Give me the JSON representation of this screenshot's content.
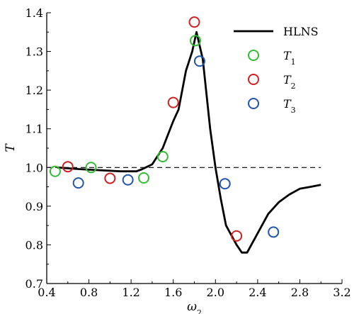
{
  "chart_data": {
    "type": "line",
    "xlabel": "ω",
    "xlabel_sub": "2",
    "ylabel": "T",
    "xlim": [
      0.4,
      3.2
    ],
    "ylim": [
      0.7,
      1.4
    ],
    "xticks": [
      "0.4",
      "0.8",
      "1.2",
      "1.6",
      "2.0",
      "2.4",
      "2.8",
      "3.2"
    ],
    "yticks": [
      "0.7",
      "0.8",
      "0.9",
      "1.0",
      "1.1",
      "1.2",
      "1.3",
      "1.4"
    ],
    "reference_line": {
      "y": 1.0,
      "style": "dashed"
    },
    "legend_position": "top-right",
    "series": [
      {
        "name": "HLNS",
        "kind": "line",
        "color": "#000000",
        "x": [
          0.5,
          0.7,
          0.9,
          1.1,
          1.25,
          1.3,
          1.4,
          1.5,
          1.6,
          1.65,
          1.72,
          1.78,
          1.82,
          1.88,
          1.95,
          2.0,
          2.05,
          2.1,
          2.2,
          2.25,
          2.3,
          2.4,
          2.5,
          2.6,
          2.7,
          2.8,
          2.9,
          3.0
        ],
        "y": [
          1.0,
          0.996,
          0.993,
          0.99,
          0.99,
          0.995,
          1.008,
          1.05,
          1.12,
          1.15,
          1.25,
          1.3,
          1.35,
          1.28,
          1.1,
          1.0,
          0.92,
          0.85,
          0.8,
          0.78,
          0.78,
          0.83,
          0.88,
          0.91,
          0.93,
          0.945,
          0.95,
          0.955
        ]
      },
      {
        "name": "T",
        "name_sub": "1",
        "kind": "markers",
        "color": "#33bb33",
        "x": [
          0.48,
          0.82,
          1.32,
          1.5,
          1.81
        ],
        "y": [
          0.99,
          1.0,
          0.973,
          1.028,
          1.328
        ]
      },
      {
        "name": "T",
        "name_sub": "2",
        "kind": "markers",
        "color": "#cc2222",
        "x": [
          0.6,
          1.0,
          1.6,
          1.8,
          2.2
        ],
        "y": [
          1.002,
          0.972,
          1.168,
          1.376,
          0.823
        ]
      },
      {
        "name": "T",
        "name_sub": "3",
        "kind": "markers",
        "color": "#2255aa",
        "x": [
          0.7,
          1.17,
          1.85,
          2.09,
          2.55
        ],
        "y": [
          0.96,
          0.968,
          1.275,
          0.958,
          0.833
        ]
      }
    ]
  }
}
